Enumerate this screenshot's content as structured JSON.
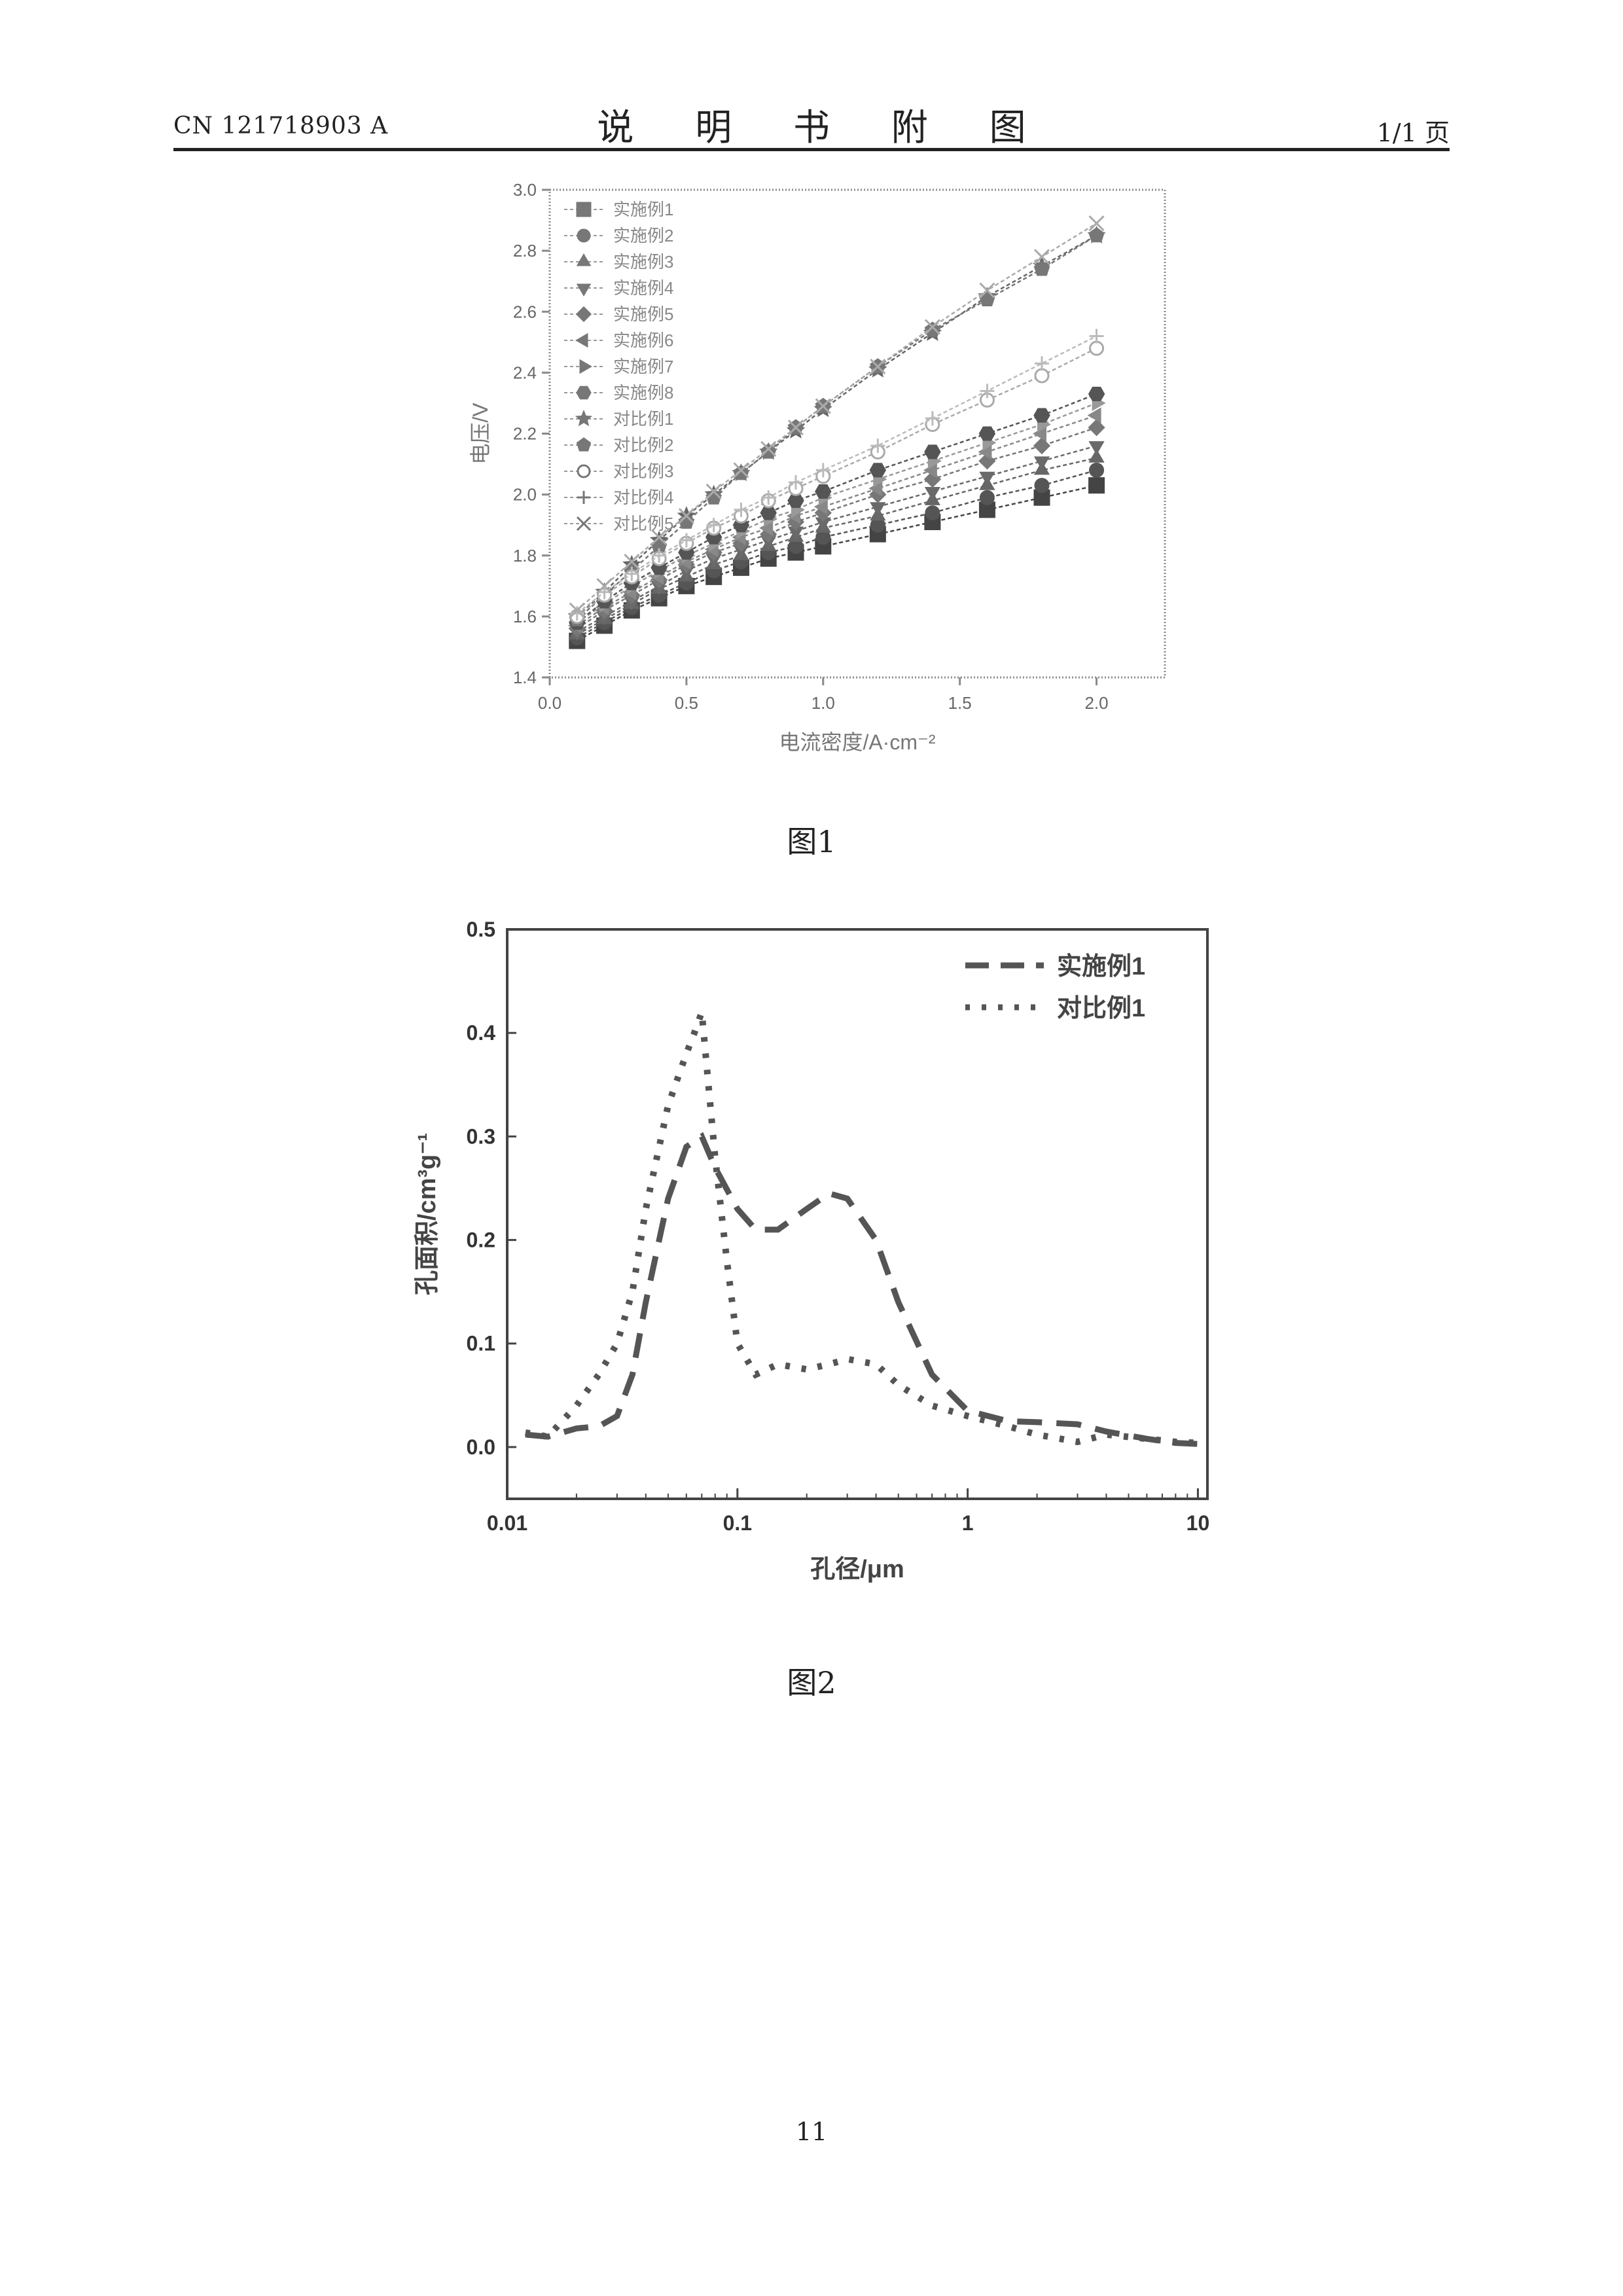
{
  "header": {
    "doc_number": "CN 121718903 A",
    "title": "说 明 书 附 图",
    "page_of": "1/1 页"
  },
  "figure1": {
    "caption": "图1"
  },
  "figure2": {
    "caption": "图2"
  },
  "page_number": "11",
  "colors": {
    "ink": "#222222",
    "faded": "#8a8a8a",
    "frame": "#444444"
  },
  "chart_data": [
    {
      "type": "line",
      "title": "",
      "xlabel": "电流密度/A·cm⁻²",
      "ylabel": "电压/V",
      "xlim": [
        0,
        2.25
      ],
      "ylim": [
        1.4,
        3.0
      ],
      "xticks": [
        "0.0",
        "0.5",
        "1.0",
        "1.5",
        "2.0"
      ],
      "yticks": [
        "1.4",
        "1.6",
        "1.8",
        "2.0",
        "2.2",
        "2.4",
        "2.6",
        "2.8",
        "3.0"
      ],
      "legend_position": "top-left",
      "x": [
        0.1,
        0.2,
        0.3,
        0.4,
        0.5,
        0.6,
        0.7,
        0.8,
        0.9,
        1.0,
        1.2,
        1.4,
        1.6,
        1.8,
        2.0
      ],
      "series": [
        {
          "name": "实施例1",
          "marker": "square",
          "values": [
            1.52,
            1.57,
            1.62,
            1.66,
            1.7,
            1.73,
            1.76,
            1.79,
            1.81,
            1.83,
            1.87,
            1.91,
            1.95,
            1.99,
            2.03
          ]
        },
        {
          "name": "实施例2",
          "marker": "circle",
          "values": [
            1.53,
            1.58,
            1.63,
            1.67,
            1.71,
            1.75,
            1.78,
            1.81,
            1.83,
            1.86,
            1.9,
            1.94,
            1.99,
            2.03,
            2.08
          ]
        },
        {
          "name": "实施例3",
          "marker": "triangle-up",
          "values": [
            1.54,
            1.59,
            1.64,
            1.69,
            1.73,
            1.77,
            1.8,
            1.83,
            1.86,
            1.89,
            1.93,
            1.98,
            2.03,
            2.08,
            2.12
          ]
        },
        {
          "name": "实施例4",
          "marker": "triangle-down",
          "values": [
            1.55,
            1.6,
            1.65,
            1.7,
            1.75,
            1.79,
            1.82,
            1.85,
            1.88,
            1.91,
            1.96,
            2.01,
            2.06,
            2.11,
            2.16
          ]
        },
        {
          "name": "实施例5",
          "marker": "diamond",
          "values": [
            1.56,
            1.62,
            1.67,
            1.72,
            1.77,
            1.81,
            1.84,
            1.87,
            1.91,
            1.94,
            2.0,
            2.05,
            2.11,
            2.16,
            2.22
          ]
        },
        {
          "name": "实施例6",
          "marker": "triangle-left",
          "values": [
            1.57,
            1.63,
            1.68,
            1.73,
            1.78,
            1.82,
            1.86,
            1.89,
            1.93,
            1.96,
            2.02,
            2.08,
            2.14,
            2.2,
            2.26
          ]
        },
        {
          "name": "实施例7",
          "marker": "triangle-right",
          "values": [
            1.58,
            1.64,
            1.7,
            1.75,
            1.8,
            1.84,
            1.88,
            1.92,
            1.95,
            1.99,
            2.05,
            2.11,
            2.17,
            2.23,
            2.3
          ]
        },
        {
          "name": "实施例8",
          "marker": "hexagon",
          "values": [
            1.58,
            1.65,
            1.71,
            1.76,
            1.81,
            1.86,
            1.9,
            1.94,
            1.98,
            2.01,
            2.08,
            2.14,
            2.2,
            2.26,
            2.33
          ]
        },
        {
          "name": "对比例1",
          "marker": "star",
          "values": [
            1.6,
            1.68,
            1.77,
            1.85,
            1.93,
            2.0,
            2.07,
            2.14,
            2.21,
            2.28,
            2.41,
            2.53,
            2.65,
            2.75,
            2.85
          ]
        },
        {
          "name": "对比例2",
          "marker": "pentagon",
          "values": [
            1.59,
            1.67,
            1.75,
            1.83,
            1.91,
            1.99,
            2.07,
            2.14,
            2.22,
            2.29,
            2.42,
            2.54,
            2.64,
            2.74,
            2.85
          ]
        },
        {
          "name": "对比例3",
          "marker": "open-circle",
          "values": [
            1.6,
            1.67,
            1.73,
            1.79,
            1.84,
            1.89,
            1.93,
            1.98,
            2.02,
            2.06,
            2.14,
            2.23,
            2.31,
            2.39,
            2.48
          ]
        },
        {
          "name": "对比例4",
          "marker": "plus",
          "values": [
            1.61,
            1.68,
            1.74,
            1.8,
            1.85,
            1.9,
            1.95,
            1.99,
            2.04,
            2.08,
            2.16,
            2.25,
            2.34,
            2.43,
            2.52
          ]
        },
        {
          "name": "对比例5",
          "marker": "cross",
          "values": [
            1.62,
            1.7,
            1.78,
            1.86,
            1.93,
            2.01,
            2.08,
            2.15,
            2.22,
            2.29,
            2.42,
            2.55,
            2.67,
            2.78,
            2.89
          ]
        }
      ]
    },
    {
      "type": "line",
      "title": "",
      "xlabel": "孔径/μm",
      "ylabel": "孔面积/cm³g⁻¹",
      "xscale": "log",
      "xlim": [
        0.01,
        11
      ],
      "ylim": [
        -0.05,
        0.5
      ],
      "xticks": [
        "0.01",
        "0.1",
        "1",
        "10"
      ],
      "yticks": [
        "0.0",
        "0.1",
        "0.2",
        "0.3",
        "0.4",
        "0.5"
      ],
      "legend_position": "top-right",
      "series": [
        {
          "name": "实施例1",
          "style": "dash",
          "x": [
            0.012,
            0.015,
            0.02,
            0.025,
            0.03,
            0.035,
            0.04,
            0.05,
            0.06,
            0.07,
            0.08,
            0.1,
            0.12,
            0.15,
            0.2,
            0.25,
            0.3,
            0.4,
            0.5,
            0.7,
            1.0,
            1.5,
            2.0,
            3.0,
            4.0,
            6.0,
            8.0,
            10.0
          ],
          "values": [
            0.012,
            0.01,
            0.018,
            0.02,
            0.03,
            0.07,
            0.14,
            0.24,
            0.29,
            0.3,
            0.27,
            0.23,
            0.21,
            0.21,
            0.23,
            0.245,
            0.24,
            0.2,
            0.14,
            0.07,
            0.035,
            0.025,
            0.024,
            0.022,
            0.015,
            0.008,
            0.004,
            0.003
          ]
        },
        {
          "name": "对比例1",
          "style": "dot",
          "x": [
            0.012,
            0.015,
            0.02,
            0.025,
            0.03,
            0.035,
            0.04,
            0.05,
            0.06,
            0.065,
            0.07,
            0.08,
            0.09,
            0.1,
            0.12,
            0.15,
            0.2,
            0.25,
            0.3,
            0.4,
            0.5,
            0.7,
            1.0,
            1.5,
            2.0,
            3.0,
            4.0,
            6.0,
            8.0,
            10.0
          ],
          "values": [
            0.014,
            0.01,
            0.04,
            0.07,
            0.1,
            0.15,
            0.23,
            0.33,
            0.38,
            0.4,
            0.42,
            0.28,
            0.18,
            0.1,
            0.07,
            0.08,
            0.075,
            0.08,
            0.085,
            0.08,
            0.06,
            0.04,
            0.03,
            0.02,
            0.012,
            0.005,
            0.012,
            0.008,
            0.005,
            0.004
          ]
        }
      ]
    }
  ]
}
